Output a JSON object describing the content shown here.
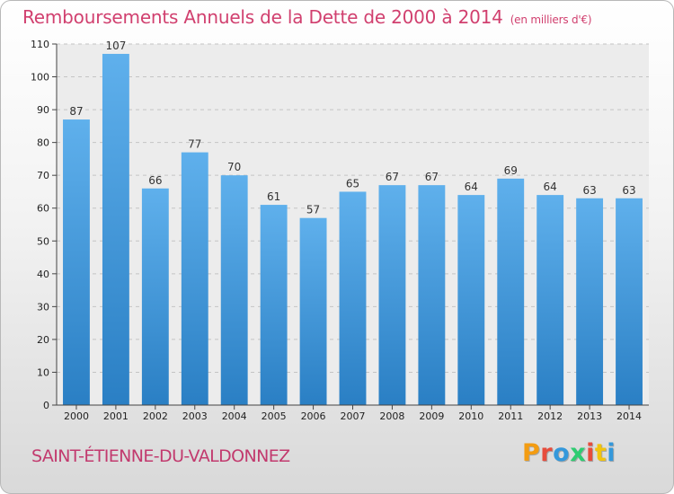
{
  "header": {
    "title": "Remboursements Annuels de la Dette de 2000 à 2014",
    "unit": "(en milliers d'€)"
  },
  "footer": {
    "commune": "SAINT-ÉTIENNE-DU-VALDONNEZ",
    "logo": [
      "P",
      "r",
      "o",
      "x",
      "i",
      "t",
      "i"
    ]
  },
  "colors": {
    "title": "#d1406f",
    "bar_top": "#5fb0ec",
    "bar_bottom": "#2a7fc4",
    "logo": [
      "#f39c12",
      "#e74c3c",
      "#3498db",
      "#2ecc71",
      "#e74c3c",
      "#f1c40f",
      "#3498db"
    ]
  },
  "chart_data": {
    "type": "bar",
    "categories": [
      "2000",
      "2001",
      "2002",
      "2003",
      "2004",
      "2005",
      "2006",
      "2007",
      "2008",
      "2009",
      "2010",
      "2011",
      "2012",
      "2013",
      "2014"
    ],
    "values": [
      87,
      107,
      66,
      77,
      70,
      61,
      57,
      65,
      67,
      67,
      64,
      69,
      64,
      63,
      63
    ],
    "ylim": [
      0,
      110
    ],
    "yticks": [
      0,
      10,
      20,
      30,
      40,
      50,
      60,
      70,
      80,
      90,
      100,
      110
    ],
    "grid": true,
    "data_labels": true
  }
}
